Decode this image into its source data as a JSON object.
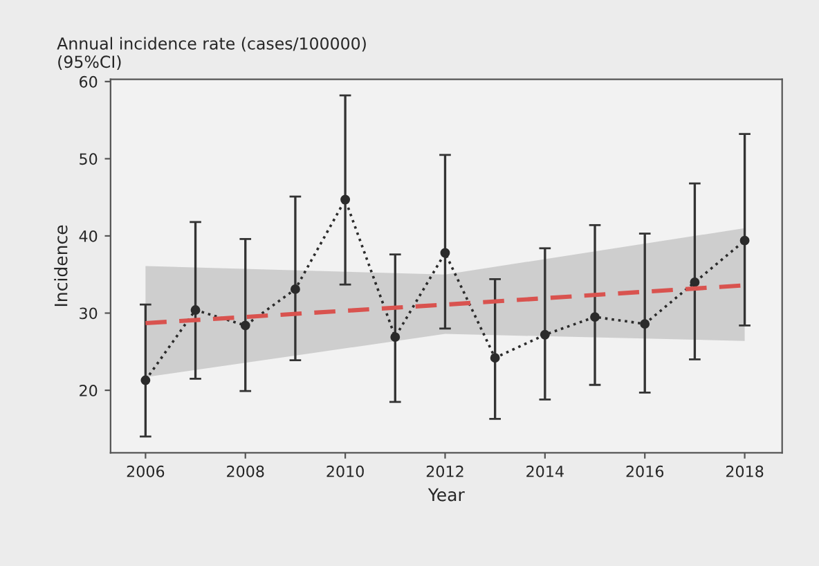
{
  "chart_data": {
    "type": "line",
    "title": "Annual incidence rate (cases/100000)\n(95%CI)",
    "xlabel": "Year",
    "ylabel": "Incidence",
    "x": [
      2006,
      2007,
      2008,
      2009,
      2010,
      2011,
      2012,
      2013,
      2014,
      2015,
      2016,
      2017,
      2018
    ],
    "series": [
      {
        "color": "#2b2b2b",
        "marker": "circle",
        "line_style": "dotted",
        "values": [
          21.3,
          30.4,
          28.4,
          33.1,
          44.7,
          26.9,
          37.8,
          24.2,
          27.2,
          29.5,
          28.6,
          34.0,
          39.4
        ],
        "errors": [
          [
            14.0,
            31.1
          ],
          [
            21.5,
            41.8
          ],
          [
            19.9,
            39.6
          ],
          [
            23.9,
            45.1
          ],
          [
            33.7,
            58.2
          ],
          [
            18.5,
            37.6
          ],
          [
            28.0,
            50.5
          ],
          [
            16.3,
            34.4
          ],
          [
            18.8,
            38.4
          ],
          [
            20.7,
            41.4
          ],
          [
            19.7,
            40.3
          ],
          [
            24.0,
            46.8
          ],
          [
            28.4,
            53.2
          ]
        ]
      },
      {
        "color": "#d9534f",
        "marker": "none",
        "line_style": "dashed",
        "x": [
          2006,
          2012,
          2018
        ],
        "values": [
          28.7,
          31.1,
          33.6
        ],
        "lower": [
          21.7,
          27.3,
          26.4
        ],
        "upper": [
          36.1,
          35.0,
          41.0
        ]
      }
    ],
    "xlim": [
      2005.3,
      2018.75
    ],
    "xticks": [
      2006,
      2008,
      2010,
      2012,
      2014,
      2016,
      2018
    ],
    "ylim": [
      11.9,
      60.3
    ],
    "yticks": [
      20,
      30,
      40,
      50,
      60
    ],
    "grid": false
  }
}
